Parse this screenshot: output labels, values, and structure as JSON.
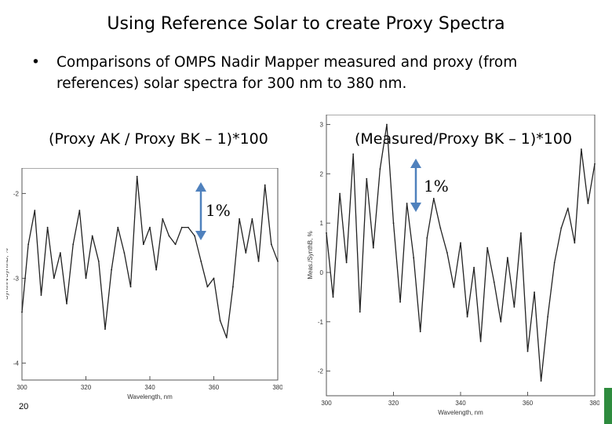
{
  "slide": {
    "title": "Using Reference Solar to create Proxy Spectra",
    "bullet": "Comparisons of  OMPS Nadir Mapper measured and proxy (from references) solar spectra for 300 nm to 380 nm.",
    "bullet_marker": "•",
    "slide_number": "20",
    "arrow_color": "#4f81bd",
    "corner_mark_color": "#2e8b3e"
  },
  "charts": {
    "left": {
      "caption": "(Proxy AK / Proxy BK – 1)*100",
      "scale_label": "1%",
      "xlabel": "Wavelength, nm",
      "ylabel": "SynthA/SynthB, %"
    },
    "right": {
      "caption": "(Measured/Proxy BK – 1)*100",
      "scale_label": "1%",
      "xlabel": "Wavelength, nm",
      "ylabel": "Meas./SynthB, %"
    }
  },
  "chart_data": [
    {
      "type": "line",
      "xlabel": "Wavelength, nm",
      "ylabel": "SynthA/SynthB, %",
      "xlim": [
        300,
        380
      ],
      "ylim": [
        -4.2,
        -1.7
      ],
      "xticks": [
        300,
        320,
        340,
        360,
        380
      ],
      "yticks": [
        -2,
        -3,
        -4
      ],
      "x": [
        300,
        302,
        304,
        306,
        308,
        310,
        312,
        314,
        316,
        318,
        320,
        322,
        324,
        326,
        328,
        330,
        332,
        334,
        336,
        338,
        340,
        342,
        344,
        346,
        348,
        350,
        352,
        354,
        356,
        358,
        360,
        362,
        364,
        366,
        368,
        370,
        372,
        374,
        376,
        378,
        380
      ],
      "y": [
        -3.4,
        -2.6,
        -2.2,
        -3.2,
        -2.4,
        -3.0,
        -2.7,
        -3.3,
        -2.6,
        -2.2,
        -3.0,
        -2.5,
        -2.8,
        -3.6,
        -2.9,
        -2.4,
        -2.7,
        -3.1,
        -1.8,
        -2.6,
        -2.4,
        -2.9,
        -2.3,
        -2.5,
        -2.6,
        -2.4,
        -2.4,
        -2.5,
        -2.8,
        -3.1,
        -3.0,
        -3.5,
        -3.7,
        -3.1,
        -2.3,
        -2.7,
        -2.3,
        -2.8,
        -1.9,
        -2.6,
        -2.8
      ]
    },
    {
      "type": "line",
      "xlabel": "Wavelength, nm",
      "ylabel": "Meas./SynthB, %",
      "xlim": [
        300,
        380
      ],
      "ylim": [
        -2.5,
        3.2
      ],
      "xticks": [
        300,
        320,
        340,
        360,
        380
      ],
      "yticks": [
        3,
        2,
        1,
        0,
        -1,
        -2
      ],
      "x": [
        300,
        302,
        304,
        306,
        308,
        310,
        312,
        314,
        316,
        318,
        320,
        322,
        324,
        326,
        328,
        330,
        332,
        334,
        336,
        338,
        340,
        342,
        344,
        346,
        348,
        350,
        352,
        354,
        356,
        358,
        360,
        362,
        364,
        366,
        368,
        370,
        372,
        374,
        376,
        378,
        380
      ],
      "y": [
        0.8,
        -0.5,
        1.6,
        0.2,
        2.4,
        -0.8,
        1.9,
        0.5,
        2.1,
        3.0,
        1.0,
        -0.6,
        1.4,
        0.3,
        -1.2,
        0.7,
        1.5,
        0.9,
        0.4,
        -0.3,
        0.6,
        -0.9,
        0.1,
        -1.4,
        0.5,
        -0.2,
        -1.0,
        0.3,
        -0.7,
        0.8,
        -1.6,
        -0.4,
        -2.2,
        -0.9,
        0.2,
        0.9,
        1.3,
        0.6,
        2.5,
        1.4,
        2.2
      ]
    }
  ]
}
